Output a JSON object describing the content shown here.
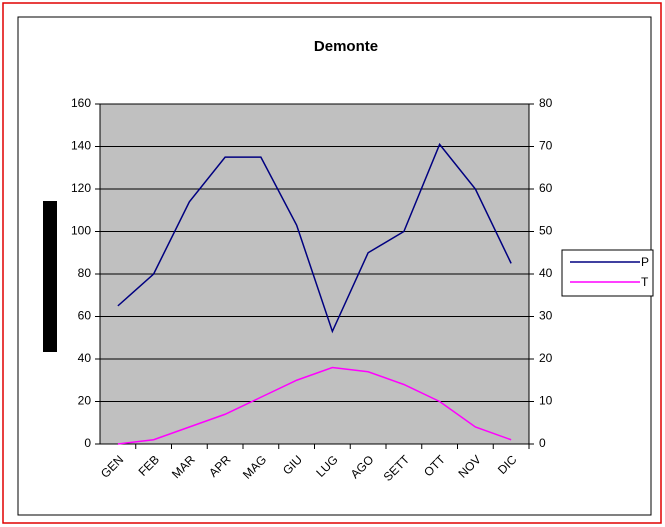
{
  "chart_data": {
    "type": "line",
    "title": "Demonte",
    "categories": [
      "GEN",
      "FEB",
      "MAR",
      "APR",
      "MAG",
      "GIU",
      "LUG",
      "AGO",
      "SETT",
      "OTT",
      "NOV",
      "DIC"
    ],
    "series": [
      {
        "name": "P",
        "color": "#000080",
        "values": [
          65,
          80,
          114,
          135,
          135,
          103,
          53,
          90,
          100,
          141,
          120,
          85
        ]
      },
      {
        "name": "T",
        "color": "#ff00ff",
        "axis": "y2",
        "values": [
          0,
          1,
          4,
          7,
          11,
          15,
          18,
          17,
          14,
          10,
          4,
          1
        ]
      }
    ],
    "ylim": [
      0,
      160
    ],
    "yticks": [
      0,
      20,
      40,
      60,
      80,
      100,
      120,
      140,
      160
    ],
    "y2lim": [
      0,
      80
    ],
    "y2ticks": [
      0,
      10,
      20,
      30,
      40,
      50,
      60,
      70,
      80
    ],
    "grid": true,
    "legend": "right"
  }
}
